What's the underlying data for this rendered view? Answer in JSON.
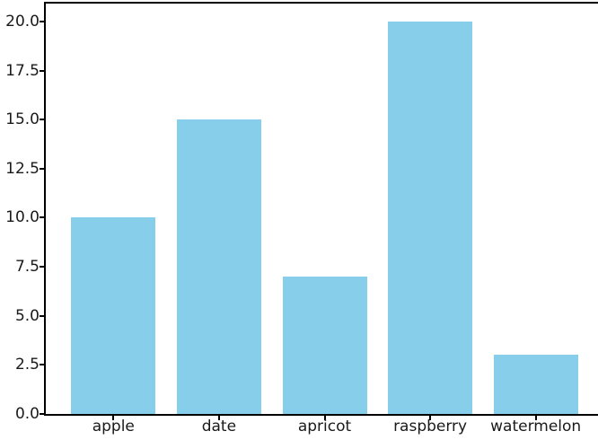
{
  "chart_data": {
    "type": "bar",
    "categories": [
      "apple",
      "date",
      "apricot",
      "raspberry",
      "watermelon"
    ],
    "values": [
      10,
      15,
      7,
      20,
      3
    ],
    "title": "",
    "xlabel": "",
    "ylabel": "",
    "ylim": [
      0,
      21
    ],
    "xlim": [
      -0.64,
      4.64
    ],
    "yticks": [
      0.0,
      2.5,
      5.0,
      7.5,
      10.0,
      12.5,
      15.0,
      17.5,
      20.0
    ],
    "ytick_format_decimals": 1,
    "bar_width": 0.8,
    "bar_color": "#87CEEB",
    "spine_color": "#000000",
    "tick_label_color": "#1a1a1a",
    "grid": false,
    "legend": null,
    "background_color": "#ffffff"
  }
}
